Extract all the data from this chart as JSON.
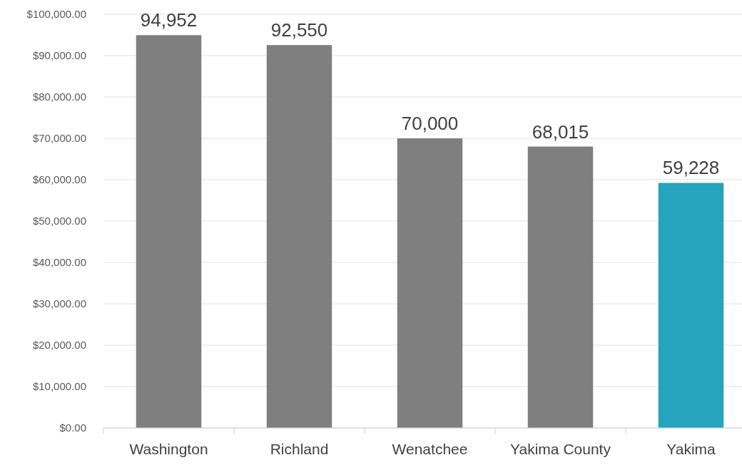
{
  "chart_data": {
    "type": "bar",
    "categories": [
      "Washington",
      "Richland",
      "Wenatchee",
      "Yakima County",
      "Yakima"
    ],
    "values": [
      94952,
      92550,
      70000,
      68015,
      59228
    ],
    "colors": [
      "#7f7f7f",
      "#7f7f7f",
      "#7f7f7f",
      "#7f7f7f",
      "#26a3bd"
    ],
    "value_labels": [
      "94,952",
      "92,550",
      "70,000",
      "68,015",
      "59,228"
    ],
    "ylim": [
      0,
      100000
    ],
    "yticks": [
      {
        "value": 0,
        "label": "$0.00"
      },
      {
        "value": 10000,
        "label": "$10,000.00"
      },
      {
        "value": 20000,
        "label": "$20,000.00"
      },
      {
        "value": 30000,
        "label": "$30,000.00"
      },
      {
        "value": 40000,
        "label": "$40,000.00"
      },
      {
        "value": 50000,
        "label": "$50,000.00"
      },
      {
        "value": 60000,
        "label": "$60,000.00"
      },
      {
        "value": 70000,
        "label": "$70,000.00"
      },
      {
        "value": 80000,
        "label": "$80,000.00"
      },
      {
        "value": 90000,
        "label": "$90,000.00"
      },
      {
        "value": 100000,
        "label": "$100,000.00"
      }
    ],
    "grid": "y"
  }
}
